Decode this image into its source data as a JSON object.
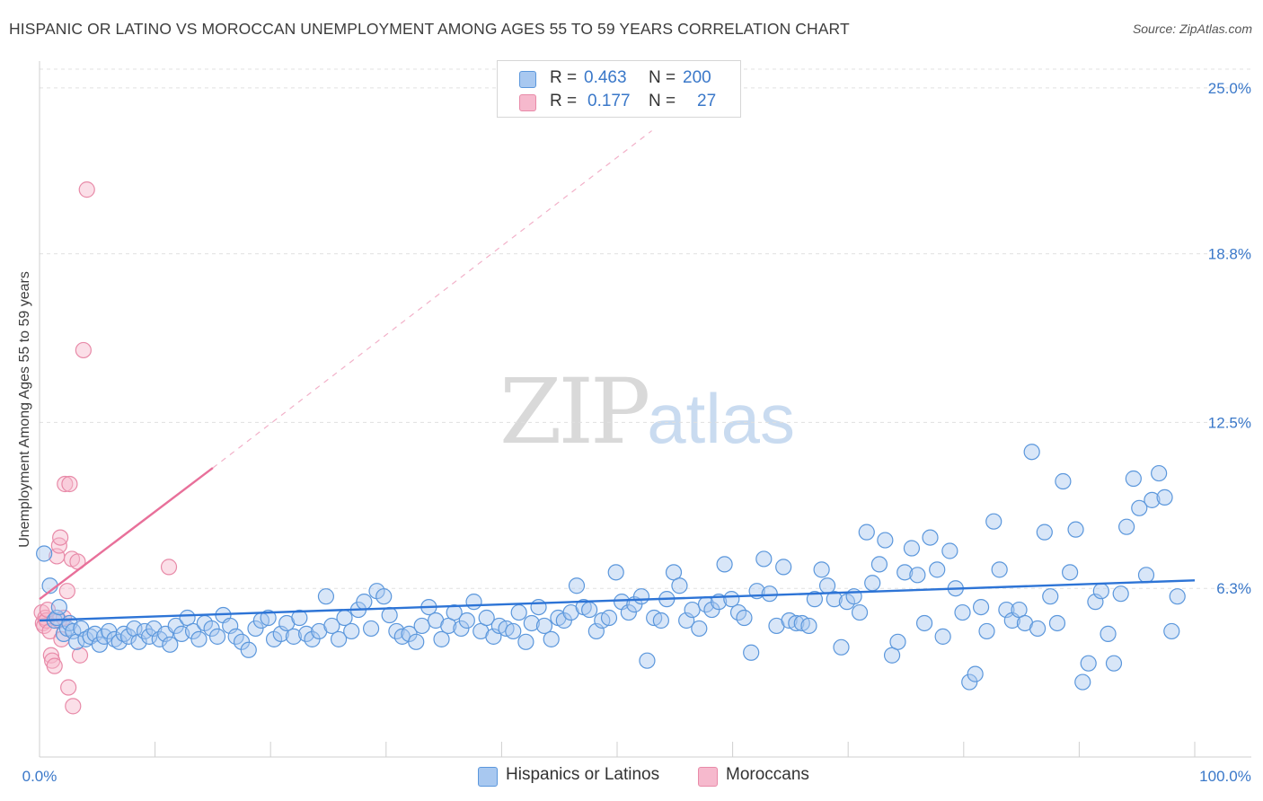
{
  "title": "HISPANIC OR LATINO VS MOROCCAN UNEMPLOYMENT AMONG AGES 55 TO 59 YEARS CORRELATION CHART",
  "source": "Source: ZipAtlas.com",
  "watermark": {
    "zip": "ZIP",
    "atlas": "atlas"
  },
  "colors": {
    "blue_fill": "#a8c8f0",
    "blue_stroke": "#5b97dc",
    "blue_line": "#2d74d6",
    "pink_fill": "#f6b9cd",
    "pink_stroke": "#e88aa8",
    "pink_line": "#e8709a",
    "grid": "#e0e0e0",
    "tick_text": "#3a78c9"
  },
  "legend": {
    "rows": [
      {
        "r_label": "R =",
        "r_value": "0.463",
        "n_label": "N =",
        "n_value": "200"
      },
      {
        "r_label": "R =",
        "r_value": "0.177",
        "n_label": "N =",
        "n_value": "27"
      }
    ]
  },
  "bottom_legend": {
    "series1": "Hispanics or Latinos",
    "series2": "Moroccans"
  },
  "chart_data": {
    "type": "scatter",
    "title": "HISPANIC OR LATINO VS MOROCCAN UNEMPLOYMENT AMONG AGES 55 TO 59 YEARS CORRELATION CHART",
    "xlabel": "",
    "ylabel": "Unemployment Among Ages 55 to 59 years",
    "x_tick_labels": [
      "0.0%",
      "100.0%"
    ],
    "y_tick_labels": [
      "6.3%",
      "12.5%",
      "18.8%",
      "25.0%"
    ],
    "y_tick_values": [
      6.3,
      12.5,
      18.8,
      25.0
    ],
    "xlim": [
      0,
      100
    ],
    "ylim": [
      0,
      25.7
    ],
    "grid": "horizontal dashed",
    "legend_position": "top-center",
    "series": [
      {
        "name": "Hispanics or Latinos",
        "color": "#a8c8f0",
        "R": 0.463,
        "N": 200,
        "trend": {
          "x": [
            0,
            100
          ],
          "y": [
            5.1,
            6.6
          ]
        },
        "points": [
          [
            0.4,
            7.6
          ],
          [
            0.9,
            6.4
          ],
          [
            1.3,
            5.1
          ],
          [
            1.5,
            5.2
          ],
          [
            1.7,
            5.6
          ],
          [
            2.1,
            4.6
          ],
          [
            2.4,
            4.8
          ],
          [
            2.6,
            5.0
          ],
          [
            2.9,
            4.7
          ],
          [
            3.2,
            4.3
          ],
          [
            3.6,
            4.8
          ],
          [
            4.0,
            4.4
          ],
          [
            4.4,
            4.5
          ],
          [
            4.8,
            4.6
          ],
          [
            5.2,
            4.2
          ],
          [
            5.6,
            4.5
          ],
          [
            6.0,
            4.7
          ],
          [
            6.5,
            4.4
          ],
          [
            6.9,
            4.3
          ],
          [
            7.3,
            4.6
          ],
          [
            7.7,
            4.5
          ],
          [
            8.2,
            4.8
          ],
          [
            8.6,
            4.3
          ],
          [
            9.1,
            4.7
          ],
          [
            9.5,
            4.5
          ],
          [
            9.9,
            4.8
          ],
          [
            10.4,
            4.4
          ],
          [
            10.9,
            4.6
          ],
          [
            11.3,
            4.2
          ],
          [
            11.8,
            4.9
          ],
          [
            12.3,
            4.6
          ],
          [
            12.8,
            5.2
          ],
          [
            13.3,
            4.7
          ],
          [
            13.8,
            4.4
          ],
          [
            14.3,
            5.0
          ],
          [
            14.9,
            4.8
          ],
          [
            15.4,
            4.5
          ],
          [
            15.9,
            5.3
          ],
          [
            16.5,
            4.9
          ],
          [
            17.0,
            4.5
          ],
          [
            17.5,
            4.3
          ],
          [
            18.1,
            4.0
          ],
          [
            18.7,
            4.8
          ],
          [
            19.2,
            5.1
          ],
          [
            19.8,
            5.2
          ],
          [
            20.3,
            4.4
          ],
          [
            20.9,
            4.6
          ],
          [
            21.4,
            5.0
          ],
          [
            22.0,
            4.5
          ],
          [
            22.5,
            5.2
          ],
          [
            23.1,
            4.6
          ],
          [
            23.6,
            4.4
          ],
          [
            24.2,
            4.7
          ],
          [
            24.8,
            6.0
          ],
          [
            25.3,
            4.9
          ],
          [
            25.9,
            4.4
          ],
          [
            26.4,
            5.2
          ],
          [
            27.0,
            4.7
          ],
          [
            27.6,
            5.5
          ],
          [
            28.1,
            5.8
          ],
          [
            28.7,
            4.8
          ],
          [
            29.2,
            6.2
          ],
          [
            29.8,
            6.0
          ],
          [
            30.3,
            5.3
          ],
          [
            30.9,
            4.7
          ],
          [
            31.4,
            4.5
          ],
          [
            32.0,
            4.6
          ],
          [
            32.6,
            4.3
          ],
          [
            33.1,
            4.9
          ],
          [
            33.7,
            5.6
          ],
          [
            34.3,
            5.1
          ],
          [
            34.8,
            4.4
          ],
          [
            35.4,
            4.9
          ],
          [
            35.9,
            5.4
          ],
          [
            36.5,
            4.8
          ],
          [
            37.0,
            5.1
          ],
          [
            37.6,
            5.8
          ],
          [
            38.2,
            4.7
          ],
          [
            38.7,
            5.2
          ],
          [
            39.3,
            4.5
          ],
          [
            39.8,
            4.9
          ],
          [
            40.4,
            4.8
          ],
          [
            41.0,
            4.7
          ],
          [
            41.5,
            5.4
          ],
          [
            42.1,
            4.3
          ],
          [
            42.6,
            5.0
          ],
          [
            43.2,
            5.6
          ],
          [
            43.7,
            4.9
          ],
          [
            44.3,
            4.4
          ],
          [
            44.9,
            5.2
          ],
          [
            45.4,
            5.1
          ],
          [
            46.0,
            5.4
          ],
          [
            46.5,
            6.4
          ],
          [
            47.1,
            5.6
          ],
          [
            47.6,
            5.5
          ],
          [
            48.2,
            4.7
          ],
          [
            48.7,
            5.1
          ],
          [
            49.3,
            5.2
          ],
          [
            49.9,
            6.9
          ],
          [
            50.4,
            5.8
          ],
          [
            51.0,
            5.4
          ],
          [
            51.5,
            5.7
          ],
          [
            52.1,
            6.0
          ],
          [
            52.6,
            3.6
          ],
          [
            53.2,
            5.2
          ],
          [
            53.8,
            5.1
          ],
          [
            54.3,
            5.9
          ],
          [
            54.9,
            6.9
          ],
          [
            55.4,
            6.4
          ],
          [
            56.0,
            5.1
          ],
          [
            56.5,
            5.5
          ],
          [
            57.1,
            4.8
          ],
          [
            57.7,
            5.7
          ],
          [
            58.2,
            5.5
          ],
          [
            58.8,
            5.8
          ],
          [
            59.3,
            7.2
          ],
          [
            59.9,
            5.9
          ],
          [
            60.5,
            5.4
          ],
          [
            61.0,
            5.2
          ],
          [
            61.6,
            3.9
          ],
          [
            62.1,
            6.2
          ],
          [
            62.7,
            7.4
          ],
          [
            63.2,
            6.1
          ],
          [
            63.8,
            4.9
          ],
          [
            64.4,
            7.1
          ],
          [
            64.9,
            5.1
          ],
          [
            65.5,
            5.0
          ],
          [
            66.0,
            5.0
          ],
          [
            66.6,
            4.9
          ],
          [
            67.1,
            5.9
          ],
          [
            67.7,
            7.0
          ],
          [
            68.2,
            6.4
          ],
          [
            68.8,
            5.9
          ],
          [
            69.4,
            4.1
          ],
          [
            69.9,
            5.8
          ],
          [
            70.5,
            6.0
          ],
          [
            71.0,
            5.4
          ],
          [
            71.6,
            8.4
          ],
          [
            72.1,
            6.5
          ],
          [
            72.7,
            7.2
          ],
          [
            73.2,
            8.1
          ],
          [
            73.8,
            3.8
          ],
          [
            74.3,
            4.3
          ],
          [
            74.9,
            6.9
          ],
          [
            75.5,
            7.8
          ],
          [
            76.0,
            6.8
          ],
          [
            76.6,
            5.0
          ],
          [
            77.1,
            8.2
          ],
          [
            77.7,
            7.0
          ],
          [
            78.2,
            4.5
          ],
          [
            78.8,
            7.7
          ],
          [
            79.3,
            6.3
          ],
          [
            79.9,
            5.4
          ],
          [
            80.5,
            2.8
          ],
          [
            81.0,
            3.1
          ],
          [
            81.5,
            5.6
          ],
          [
            82.0,
            4.7
          ],
          [
            82.6,
            8.8
          ],
          [
            83.1,
            7.0
          ],
          [
            83.7,
            5.5
          ],
          [
            84.2,
            5.1
          ],
          [
            84.8,
            5.5
          ],
          [
            85.3,
            5.0
          ],
          [
            85.9,
            11.4
          ],
          [
            86.4,
            4.8
          ],
          [
            87.0,
            8.4
          ],
          [
            87.5,
            6.0
          ],
          [
            88.1,
            5.0
          ],
          [
            88.6,
            10.3
          ],
          [
            89.2,
            6.9
          ],
          [
            89.7,
            8.5
          ],
          [
            90.3,
            2.8
          ],
          [
            90.8,
            3.5
          ],
          [
            91.4,
            5.8
          ],
          [
            91.9,
            6.2
          ],
          [
            92.5,
            4.6
          ],
          [
            93.0,
            3.5
          ],
          [
            93.6,
            6.1
          ],
          [
            94.1,
            8.6
          ],
          [
            94.7,
            10.4
          ],
          [
            95.2,
            9.3
          ],
          [
            95.8,
            6.8
          ],
          [
            96.3,
            9.6
          ],
          [
            96.9,
            10.6
          ],
          [
            97.4,
            9.7
          ],
          [
            98.0,
            4.7
          ],
          [
            98.5,
            6.0
          ]
        ]
      },
      {
        "name": "Moroccans",
        "color": "#f6b9cd",
        "R": 0.177,
        "N": 27,
        "trend": {
          "x": [
            0,
            15
          ],
          "y": [
            5.9,
            10.8
          ]
        },
        "trend_dashed": {
          "x": [
            15,
            53
          ],
          "y": [
            10.8,
            23.4
          ]
        },
        "points": [
          [
            0.2,
            5.4
          ],
          [
            0.3,
            5.0
          ],
          [
            0.4,
            4.9
          ],
          [
            0.5,
            5.2
          ],
          [
            0.6,
            5.1
          ],
          [
            0.7,
            5.5
          ],
          [
            0.9,
            4.7
          ],
          [
            1.0,
            3.8
          ],
          [
            1.1,
            3.6
          ],
          [
            1.3,
            3.4
          ],
          [
            1.5,
            7.5
          ],
          [
            1.7,
            5.1
          ],
          [
            1.7,
            7.9
          ],
          [
            1.8,
            8.2
          ],
          [
            1.9,
            4.4
          ],
          [
            2.1,
            5.2
          ],
          [
            2.2,
            10.2
          ],
          [
            2.4,
            6.2
          ],
          [
            2.5,
            2.6
          ],
          [
            2.6,
            10.2
          ],
          [
            2.8,
            7.4
          ],
          [
            2.9,
            1.9
          ],
          [
            3.3,
            7.3
          ],
          [
            3.5,
            3.8
          ],
          [
            3.8,
            15.2
          ],
          [
            4.1,
            21.2
          ],
          [
            11.2,
            7.1
          ]
        ]
      }
    ]
  }
}
